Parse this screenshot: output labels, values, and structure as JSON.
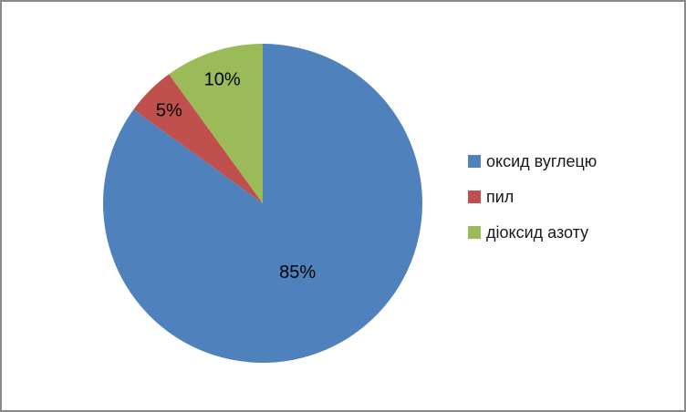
{
  "frame": {
    "background_color": "#FFFFFF",
    "border_color": "#8A8A8A"
  },
  "chart_data": {
    "type": "pie",
    "title": "",
    "direction": "clockwise",
    "start_angle_deg": 0,
    "legend_position": "right",
    "data_labels": "percent",
    "slices": [
      {
        "label": "оксид вуглецю",
        "value": 85,
        "display_label": "85%",
        "color": "#4F81BD"
      },
      {
        "label": "пил",
        "value": 5,
        "display_label": "5%",
        "color": "#C0504D"
      },
      {
        "label": "діоксид азоту",
        "value": 10,
        "display_label": "10%",
        "color": "#9BBB59"
      }
    ]
  }
}
